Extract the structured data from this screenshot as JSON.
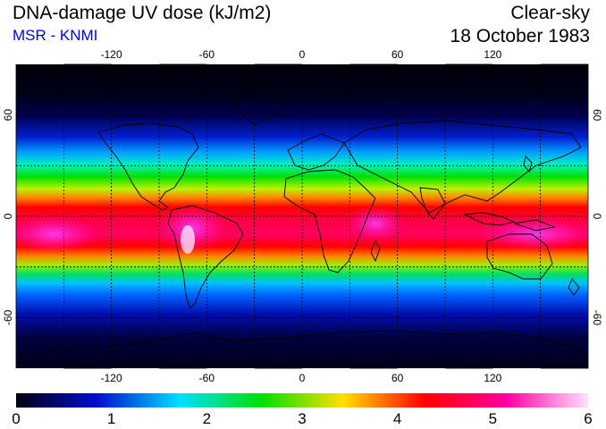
{
  "header": {
    "title": "DNA-damage UV dose (kJ/m2)",
    "subtitle": "MSR - KNMI",
    "condition": "Clear-sky",
    "date": "18 October 1983"
  },
  "map": {
    "lon_ticks": [
      "-120",
      "-60",
      "0",
      "60",
      "120"
    ],
    "lat_ticks_left": [
      "60",
      "0",
      "-60"
    ],
    "lat_ticks_right": [
      "60",
      "0",
      "-60"
    ],
    "lon_values": [
      -120,
      -60,
      0,
      60,
      120
    ],
    "lat_values": [
      60,
      0,
      -60
    ],
    "lon_range": [
      -180,
      180
    ],
    "lat_range": [
      -90,
      90
    ],
    "grid": "dotted every 30 degrees",
    "projection": "equirectangular"
  },
  "colorbar": {
    "labels": [
      "0",
      "1",
      "2",
      "3",
      "4",
      "5",
      "6"
    ],
    "values": [
      0,
      1,
      2,
      3,
      4,
      5,
      6
    ],
    "colors": [
      "#000010",
      "#0010d0",
      "#00e0ff",
      "#00e000",
      "#ffe000",
      "#ff0000",
      "#ff00a0",
      "#ffe0ff"
    ]
  },
  "colors": {
    "accent_text": "#0000ee"
  }
}
